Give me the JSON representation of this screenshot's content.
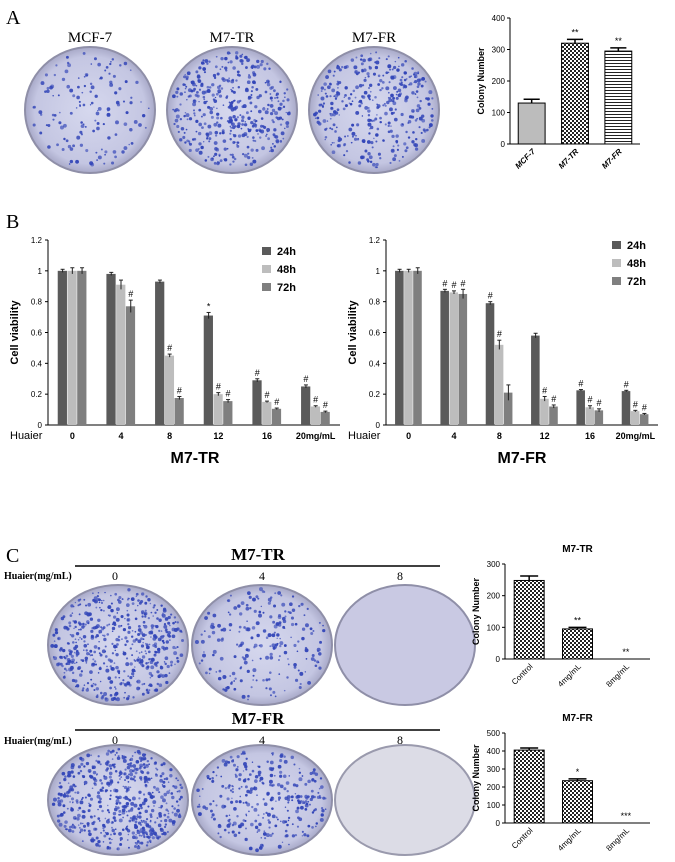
{
  "panels": {
    "A": {
      "letter": "A",
      "dish_labels": [
        "MCF-7",
        "M7-TR",
        "M7-FR"
      ]
    },
    "B": {
      "letter": "B"
    },
    "C": {
      "letter": "C",
      "tr_title": "M7-TR",
      "fr_title": "M7-FR",
      "huaier_label": "Huaier(mg/mL)",
      "dose_labels": [
        "0",
        "4",
        "8"
      ]
    }
  },
  "colors": {
    "dish_rim": "#8f8fa8",
    "dish_fill": "#c7c9e6",
    "colony": "#3346b8",
    "bar_24h": "#5a5a5a",
    "bar_48h": "#bdbdbd",
    "bar_72h": "#7f7f7f"
  },
  "chart_data": [
    {
      "id": "A_colony",
      "type": "bar",
      "categories": [
        "MCF-7",
        "M7-TR",
        "M7-FR"
      ],
      "values": [
        130,
        320,
        295
      ],
      "errors": [
        12,
        12,
        10
      ],
      "annotations": [
        "",
        "**",
        "**"
      ],
      "ylabel": "Colony Number",
      "ylim": [
        0,
        400
      ],
      "yticks": [
        "0",
        "100",
        "200",
        "300",
        "400"
      ]
    },
    {
      "id": "B_tr",
      "type": "bar",
      "categories": [
        "0",
        "4",
        "8",
        "12",
        "16",
        "20mg/mL"
      ],
      "xprefix": "Huaier",
      "xlabel": "M7-TR",
      "ylabel": "Cell viability",
      "ylim": [
        0,
        1.2
      ],
      "yticks": [
        "0",
        "0.2",
        "0.4",
        "0.6",
        "0.8",
        "1",
        "1.2"
      ],
      "legend_position": "top-right",
      "series": [
        {
          "name": "24h",
          "values": [
            1.0,
            0.98,
            0.93,
            0.71,
            0.29,
            0.25
          ],
          "errors": [
            0.01,
            0.01,
            0.01,
            0.02,
            0.01,
            0.01
          ],
          "marks": [
            "",
            "",
            "",
            "*",
            "#",
            "#"
          ]
        },
        {
          "name": "48h",
          "values": [
            1.0,
            0.91,
            0.45,
            0.2,
            0.15,
            0.12
          ],
          "errors": [
            0.02,
            0.03,
            0.01,
            0.01,
            0.005,
            0.005
          ],
          "marks": [
            "",
            "",
            "#",
            "#",
            "#",
            "#"
          ]
        },
        {
          "name": "72h",
          "values": [
            1.0,
            0.77,
            0.175,
            0.155,
            0.105,
            0.085
          ],
          "errors": [
            0.02,
            0.04,
            0.01,
            0.01,
            0.005,
            0.005
          ],
          "marks": [
            "",
            "#",
            "#",
            "#",
            "#",
            "#"
          ]
        }
      ]
    },
    {
      "id": "B_fr",
      "type": "bar",
      "categories": [
        "0",
        "4",
        "8",
        "12",
        "16",
        "20mg/mL"
      ],
      "xprefix": "Huaier",
      "xlabel": "M7-FR",
      "ylabel": "Cell viability",
      "ylim": [
        0,
        1.2
      ],
      "yticks": [
        "0",
        "0.2",
        "0.4",
        "0.6",
        "0.8",
        "1",
        "1.2"
      ],
      "legend_position": "top-right",
      "series": [
        {
          "name": "24h",
          "values": [
            1.0,
            0.87,
            0.79,
            0.58,
            0.225,
            0.22
          ],
          "errors": [
            0.01,
            0.01,
            0.01,
            0.015,
            0.005,
            0.005
          ],
          "marks": [
            "",
            "#",
            "#",
            "",
            "#",
            "#"
          ]
        },
        {
          "name": "48h",
          "values": [
            1.0,
            0.86,
            0.52,
            0.17,
            0.115,
            0.09
          ],
          "errors": [
            0.01,
            0.01,
            0.03,
            0.015,
            0.01,
            0.005
          ],
          "marks": [
            "",
            "#",
            "#",
            "#",
            "#",
            "#"
          ]
        },
        {
          "name": "72h",
          "values": [
            1.0,
            0.85,
            0.21,
            0.12,
            0.095,
            0.07
          ],
          "errors": [
            0.02,
            0.03,
            0.05,
            0.01,
            0.01,
            0.005
          ],
          "marks": [
            "",
            "#",
            "",
            "#",
            "#",
            "#"
          ]
        }
      ]
    },
    {
      "id": "C_tr",
      "type": "bar",
      "title": "M7-TR",
      "categories": [
        "Control",
        "4mg/mL",
        "8mg/mL"
      ],
      "values": [
        248,
        95,
        0
      ],
      "errors": [
        14,
        5,
        0
      ],
      "annotations": [
        "",
        "**",
        "**"
      ],
      "ylabel": "Colony Number",
      "ylim": [
        0,
        300
      ],
      "yticks": [
        "0",
        "100",
        "200",
        "300"
      ]
    },
    {
      "id": "C_fr",
      "type": "bar",
      "title": "M7-FR",
      "categories": [
        "Control",
        "4mg/mL",
        "8mg/mL"
      ],
      "values": [
        405,
        235,
        0
      ],
      "errors": [
        12,
        10,
        0
      ],
      "annotations": [
        "",
        "*",
        "***"
      ],
      "ylabel": "Colony Number",
      "ylim": [
        0,
        500
      ],
      "yticks": [
        "0",
        "100",
        "200",
        "300",
        "400",
        "500"
      ]
    }
  ]
}
